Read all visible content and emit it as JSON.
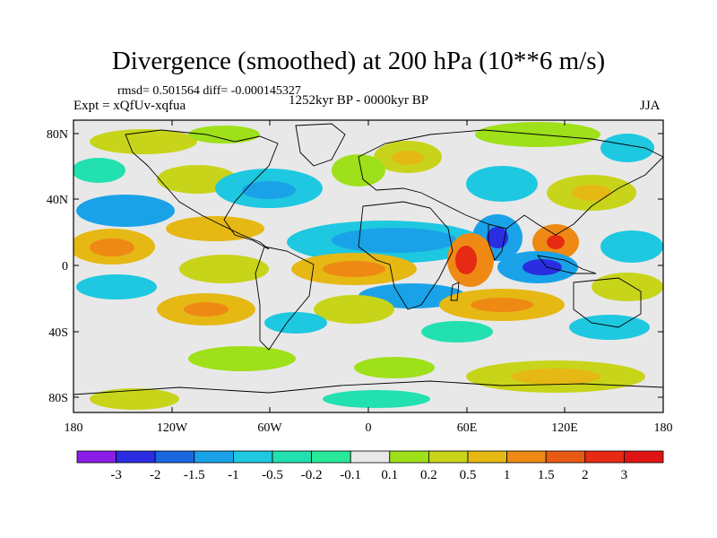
{
  "title": "Divergence (smoothed) at 200 hPa (10**6 m/s)",
  "stats": "rmsd= 0.501564  diff= -0.000145327",
  "experiment": "Expt = xQfUv-xqfua",
  "period": "1252kyr BP - 0000kyr BP",
  "season": "JJA",
  "lat_labels": [
    "80N",
    "40N",
    "0",
    "40S",
    "80S"
  ],
  "lon_labels": [
    "180",
    "120W",
    "60W",
    "0",
    "60E",
    "120E",
    "180"
  ],
  "colorbar": {
    "labels": [
      "-3",
      "-2",
      "-1.5",
      "-1",
      "-0.5",
      "-0.2",
      "-0.1",
      "0.1",
      "0.2",
      "0.5",
      "1",
      "1.5",
      "2",
      "3"
    ],
    "colors": [
      "#8a1ee6",
      "#2a2ee0",
      "#1a68e0",
      "#1aa2e8",
      "#1ec8e0",
      "#22e0b0",
      "#28e89a",
      "#e8e8e8",
      "#9ee01a",
      "#c8d41a",
      "#e6b814",
      "#ee8a14",
      "#e85a14",
      "#e62a14",
      "#e01414"
    ]
  },
  "colors": {
    "neutral": "#e8e8e8",
    "coast": "#000000"
  }
}
